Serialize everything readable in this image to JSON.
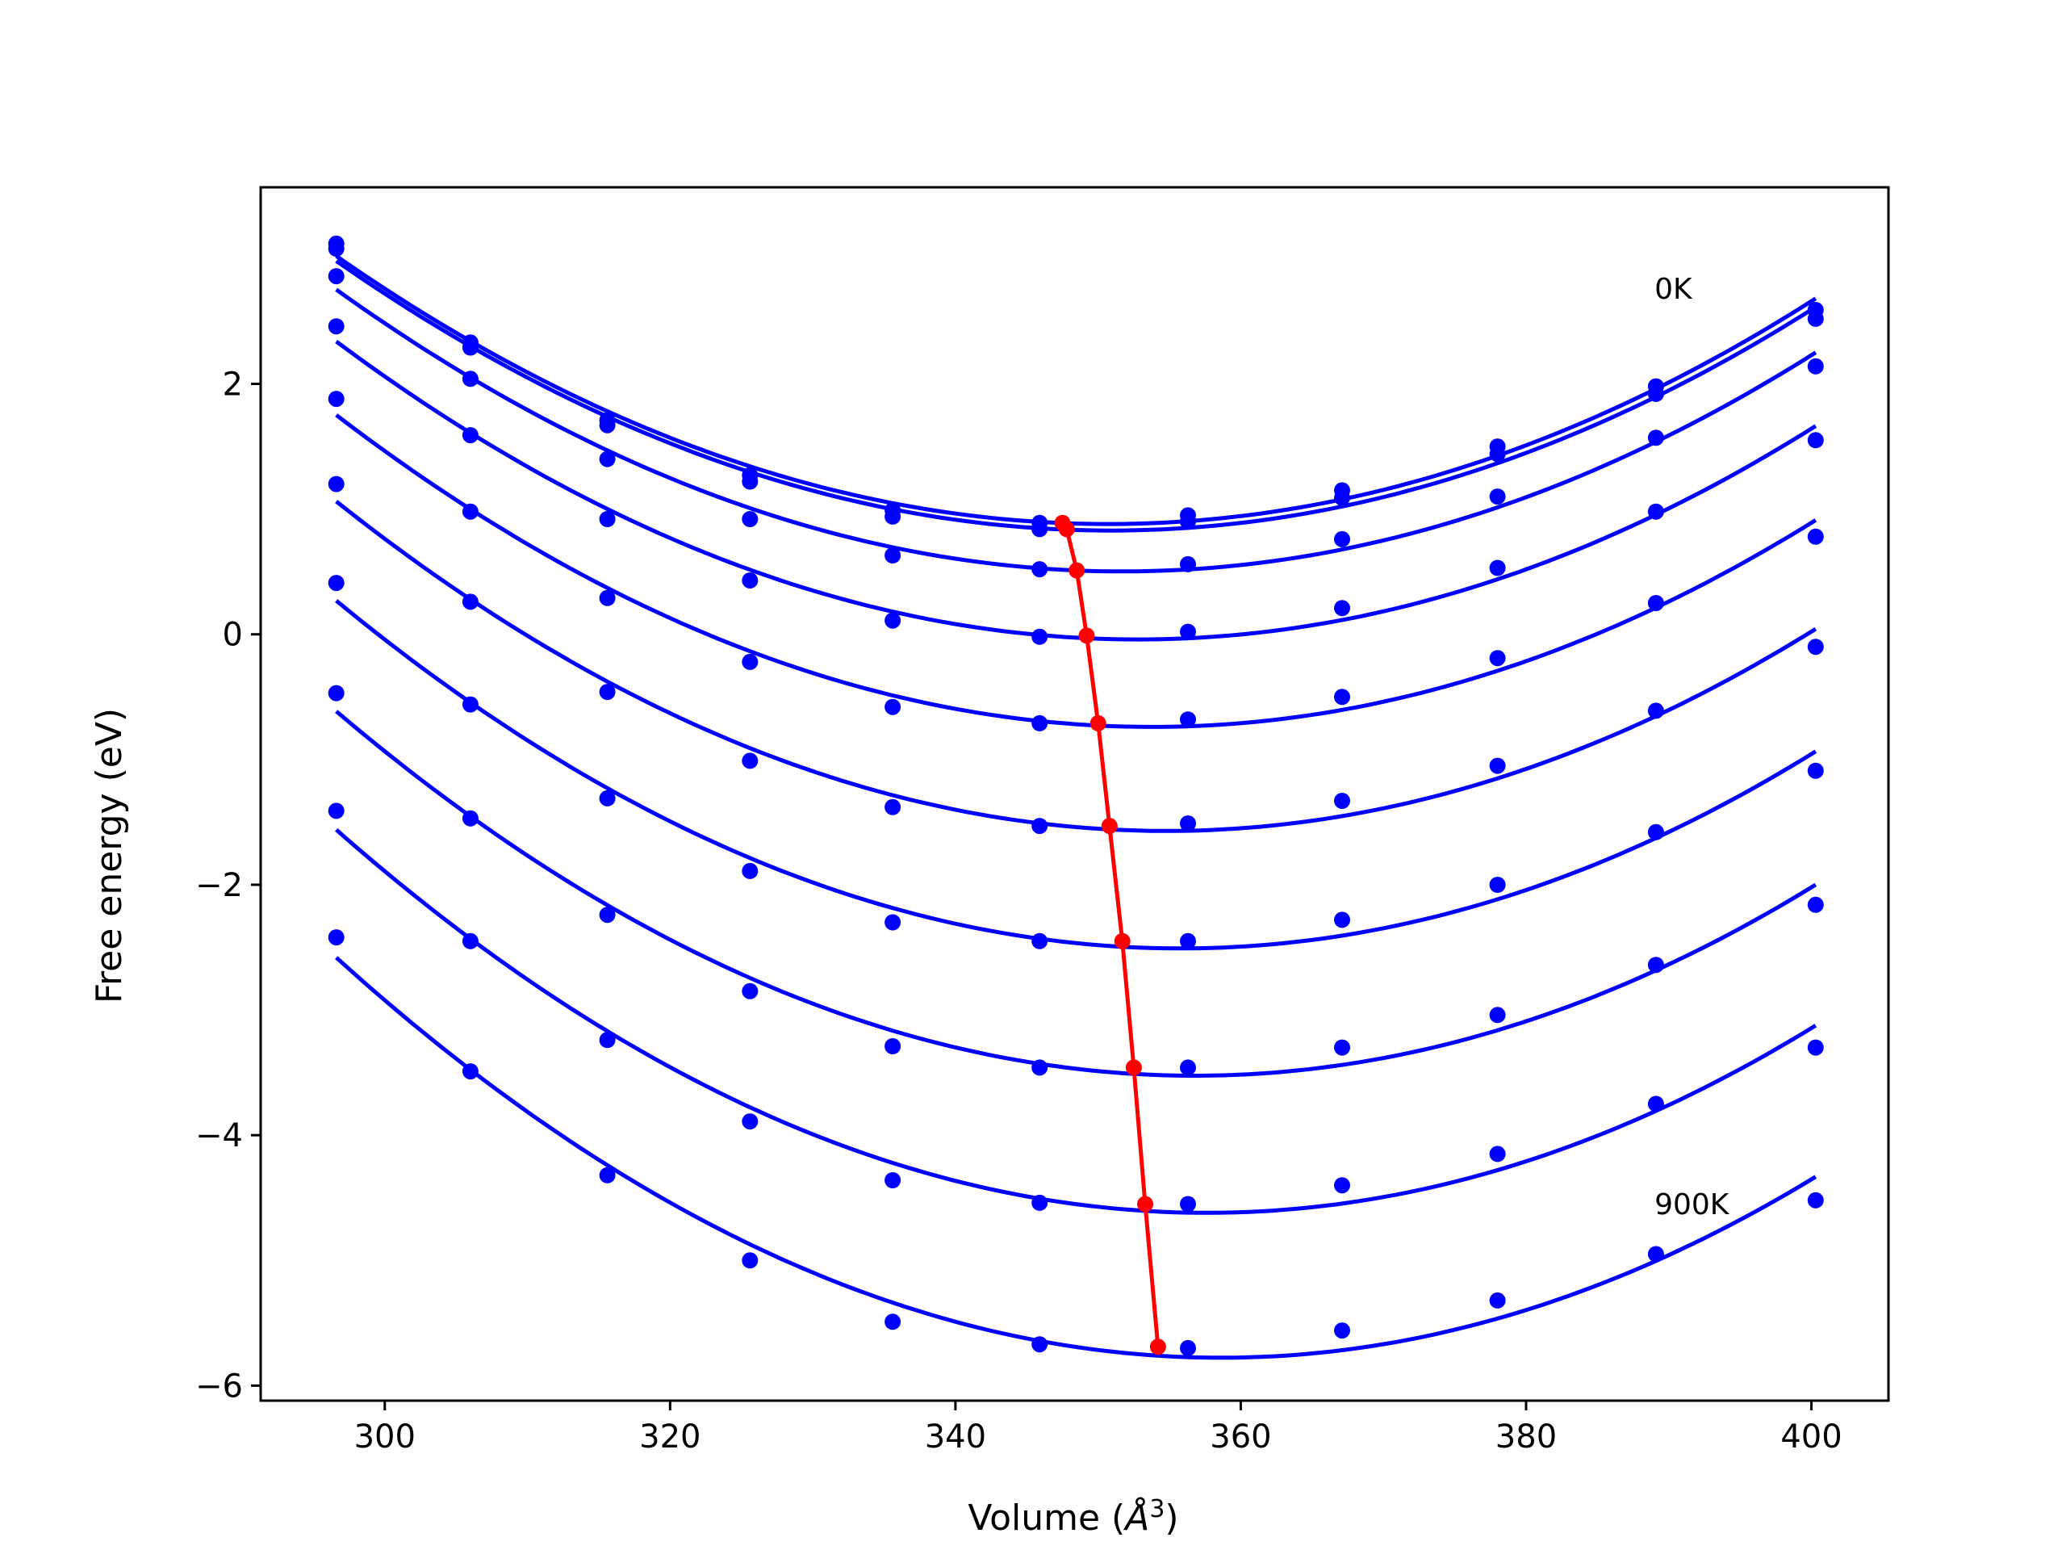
{
  "chart_data": {
    "type": "line",
    "title": "",
    "xlabel_text": "Volume (",
    "xlabel_unit": "Å",
    "xlabel_sup": "3",
    "xlabel_close": ")",
    "ylabel": "Free energy (eV)",
    "xlim": [
      291.3,
      405.4
    ],
    "ylim": [
      -6.12,
      3.57
    ],
    "xticks": [
      300,
      320,
      340,
      360,
      380,
      400
    ],
    "xtick_labels": [
      "300",
      "320",
      "340",
      "360",
      "380",
      "400"
    ],
    "yticks": [
      -6,
      -4,
      -2,
      0,
      2
    ],
    "ytick_labels": [
      "−6",
      "−4",
      "−2",
      "0",
      "2"
    ],
    "grid": false,
    "annotations": [
      {
        "text": "0K",
        "x": 389.0,
        "y": 2.68
      },
      {
        "text": "900K",
        "x": 389.0,
        "y": -4.63
      }
    ],
    "volumes": [
      296.6,
      306.0,
      315.6,
      325.6,
      335.6,
      345.9,
      356.3,
      367.1,
      378.0,
      389.1,
      400.3
    ],
    "series": [
      {
        "points": [
          3.12,
          2.33,
          1.71,
          1.27,
          0.99,
          0.89,
          0.95,
          1.15,
          1.5,
          1.98,
          2.59
        ],
        "color": "#0000ff"
      },
      {
        "points": [
          3.08,
          2.29,
          1.67,
          1.22,
          0.94,
          0.84,
          0.9,
          1.09,
          1.44,
          1.92,
          2.52
        ],
        "color": "#0000ff"
      },
      {
        "points": [
          2.86,
          2.04,
          1.4,
          0.92,
          0.63,
          0.52,
          0.56,
          0.76,
          1.1,
          1.57,
          2.14
        ],
        "color": "#0000ff"
      },
      {
        "points": [
          2.46,
          1.59,
          0.92,
          0.43,
          0.11,
          -0.02,
          0.02,
          0.21,
          0.53,
          0.98,
          1.55
        ],
        "color": "#0000ff"
      },
      {
        "points": [
          1.88,
          0.98,
          0.29,
          -0.22,
          -0.58,
          -0.71,
          -0.68,
          -0.5,
          -0.19,
          0.25,
          0.78
        ],
        "color": "#0000ff"
      },
      {
        "points": [
          1.2,
          0.26,
          -0.46,
          -1.01,
          -1.38,
          -1.53,
          -1.51,
          -1.33,
          -1.05,
          -0.61,
          -0.1
        ],
        "color": "#0000ff"
      },
      {
        "points": [
          0.41,
          -0.56,
          -1.31,
          -1.89,
          -2.3,
          -2.45,
          -2.45,
          -2.28,
          -2.0,
          -1.58,
          -1.09
        ],
        "color": "#0000ff"
      },
      {
        "points": [
          -0.47,
          -1.47,
          -2.24,
          -2.85,
          -3.29,
          -3.46,
          -3.46,
          -3.3,
          -3.04,
          -2.64,
          -2.16
        ],
        "color": "#0000ff"
      },
      {
        "points": [
          -1.41,
          -2.45,
          -3.24,
          -3.89,
          -4.36,
          -4.54,
          -4.55,
          -4.4,
          -4.15,
          -3.75,
          -3.3
        ],
        "color": "#0000ff"
      },
      {
        "points": [
          -2.42,
          -3.49,
          -4.32,
          -5.0,
          -5.49,
          -5.67,
          -5.7,
          -5.56,
          -5.32,
          -4.95,
          -4.52
        ],
        "color": "#0000ff"
      }
    ],
    "minima": {
      "color": "#ff0000",
      "x": [
        347.5,
        347.8,
        348.5,
        349.2,
        350.0,
        350.8,
        351.7,
        352.5,
        353.3,
        354.2
      ],
      "y": [
        0.89,
        0.84,
        0.51,
        -0.01,
        -0.71,
        -1.53,
        -2.45,
        -3.46,
        -4.55,
        -5.69
      ]
    }
  }
}
